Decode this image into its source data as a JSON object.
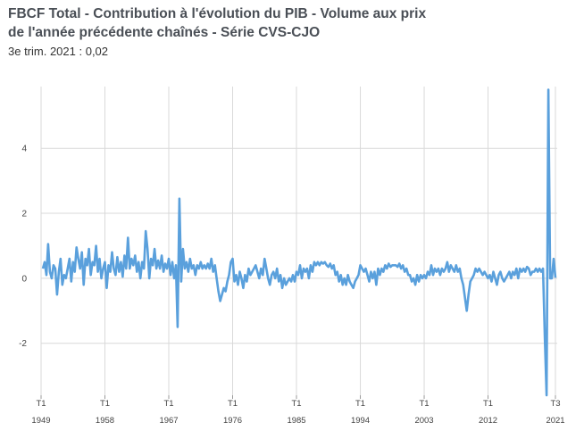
{
  "chart_data": {
    "type": "line",
    "title_line1": "FBCF Total - Contribution à l'évolution du PIB - Volume aux prix",
    "title_line2": "de l'année précédente chaînés - Série CVS-CJO",
    "subtitle": "3e trim. 2021 : 0,02",
    "ylim": [
      -3.6,
      5.9
    ],
    "yticks": [
      -2,
      0,
      2,
      4
    ],
    "xlim": [
      1949.0,
      2021.75
    ],
    "xticks": [
      {
        "quarter": "T1",
        "year": "1949",
        "x": 1949.0
      },
      {
        "quarter": "T1",
        "year": "1958",
        "x": 1958.0
      },
      {
        "quarter": "T1",
        "year": "1967",
        "x": 1967.0
      },
      {
        "quarter": "T1",
        "year": "1976",
        "x": 1976.0
      },
      {
        "quarter": "T1",
        "year": "1985",
        "x": 1985.0
      },
      {
        "quarter": "T1",
        "year": "1994",
        "x": 1994.0
      },
      {
        "quarter": "T1",
        "year": "2003",
        "x": 2003.0
      },
      {
        "quarter": "T1",
        "year": "2012",
        "x": 2012.0
      },
      {
        "quarter": "T3",
        "year": "2021",
        "x": 2021.5
      }
    ],
    "series": [
      {
        "name": "FBCF Total",
        "color": "#5aa0dc",
        "points": [
          [
            1949.25,
            0.3
          ],
          [
            1949.5,
            0.5
          ],
          [
            1949.75,
            0.1
          ],
          [
            1950.0,
            1.05
          ],
          [
            1950.25,
            0.2
          ],
          [
            1950.5,
            0.0
          ],
          [
            1950.75,
            0.4
          ],
          [
            1951.0,
            0.3
          ],
          [
            1951.25,
            -0.5
          ],
          [
            1951.5,
            0.2
          ],
          [
            1951.75,
            0.6
          ],
          [
            1952.0,
            -0.2
          ],
          [
            1952.25,
            0.1
          ],
          [
            1952.5,
            0.0
          ],
          [
            1952.75,
            0.3
          ],
          [
            1953.0,
            0.6
          ],
          [
            1953.25,
            -0.1
          ],
          [
            1953.5,
            0.5
          ],
          [
            1953.75,
            0.2
          ],
          [
            1954.0,
            0.95
          ],
          [
            1954.25,
            0.6
          ],
          [
            1954.5,
            0.3
          ],
          [
            1954.75,
            0.8
          ],
          [
            1955.0,
            -0.2
          ],
          [
            1955.25,
            0.6
          ],
          [
            1955.5,
            0.4
          ],
          [
            1955.75,
            0.9
          ],
          [
            1956.0,
            0.1
          ],
          [
            1956.25,
            0.5
          ],
          [
            1956.5,
            0.4
          ],
          [
            1956.75,
            1.0
          ],
          [
            1957.0,
            0.2
          ],
          [
            1957.25,
            0.6
          ],
          [
            1957.5,
            0.0
          ],
          [
            1957.75,
            0.3
          ],
          [
            1958.0,
            0.5
          ],
          [
            1958.25,
            -0.3
          ],
          [
            1958.5,
            0.4
          ],
          [
            1958.75,
            0.2
          ],
          [
            1959.0,
            0.8
          ],
          [
            1959.25,
            0.3
          ],
          [
            1959.5,
            0.1
          ],
          [
            1959.75,
            0.65
          ],
          [
            1960.0,
            0.2
          ],
          [
            1960.25,
            0.5
          ],
          [
            1960.5,
            0.05
          ],
          [
            1960.75,
            0.7
          ],
          [
            1961.0,
            0.3
          ],
          [
            1961.25,
            1.25
          ],
          [
            1961.5,
            0.3
          ],
          [
            1961.75,
            0.6
          ],
          [
            1962.0,
            0.4
          ],
          [
            1962.25,
            0.7
          ],
          [
            1962.5,
            0.2
          ],
          [
            1962.75,
            0.5
          ],
          [
            1963.0,
            0.0
          ],
          [
            1963.25,
            0.5
          ],
          [
            1963.5,
            0.3
          ],
          [
            1963.75,
            1.45
          ],
          [
            1964.0,
            0.9
          ],
          [
            1964.25,
            0.0
          ],
          [
            1964.5,
            0.6
          ],
          [
            1964.75,
            0.4
          ],
          [
            1965.0,
            0.9
          ],
          [
            1965.25,
            0.3
          ],
          [
            1965.5,
            0.55
          ],
          [
            1965.75,
            0.3
          ],
          [
            1966.0,
            0.7
          ],
          [
            1966.25,
            0.2
          ],
          [
            1966.5,
            0.45
          ],
          [
            1966.75,
            0.3
          ],
          [
            1967.0,
            0.6
          ],
          [
            1967.25,
            0.1
          ],
          [
            1967.5,
            0.5
          ],
          [
            1967.75,
            0.0
          ],
          [
            1968.0,
            0.4
          ],
          [
            1968.25,
            -1.5
          ],
          [
            1968.5,
            2.45
          ],
          [
            1968.75,
            -0.1
          ],
          [
            1969.0,
            0.9
          ],
          [
            1969.25,
            0.3
          ],
          [
            1969.5,
            0.5
          ],
          [
            1969.75,
            0.2
          ],
          [
            1970.0,
            0.6
          ],
          [
            1970.25,
            0.3
          ],
          [
            1970.5,
            0.4
          ],
          [
            1970.75,
            0.1
          ],
          [
            1971.0,
            0.4
          ],
          [
            1971.25,
            0.3
          ],
          [
            1971.5,
            0.5
          ],
          [
            1971.75,
            0.3
          ],
          [
            1972.0,
            0.4
          ],
          [
            1972.25,
            0.3
          ],
          [
            1972.5,
            0.45
          ],
          [
            1972.75,
            0.3
          ],
          [
            1973.0,
            0.6
          ],
          [
            1973.25,
            0.2
          ],
          [
            1973.5,
            0.4
          ],
          [
            1973.75,
            0.0
          ],
          [
            1974.0,
            -0.4
          ],
          [
            1974.25,
            -0.7
          ],
          [
            1974.5,
            -0.5
          ],
          [
            1974.75,
            -0.3
          ],
          [
            1975.0,
            -0.4
          ],
          [
            1975.25,
            -0.1
          ],
          [
            1975.5,
            0.1
          ],
          [
            1975.75,
            0.5
          ],
          [
            1976.0,
            0.6
          ],
          [
            1976.25,
            -0.1
          ],
          [
            1976.5,
            0.1
          ],
          [
            1976.75,
            -0.2
          ],
          [
            1977.0,
            0.2
          ],
          [
            1977.25,
            0.0
          ],
          [
            1977.5,
            -0.3
          ],
          [
            1977.75,
            0.1
          ],
          [
            1978.0,
            -0.1
          ],
          [
            1978.25,
            0.3
          ],
          [
            1978.5,
            0.1
          ],
          [
            1978.75,
            0.2
          ],
          [
            1979.0,
            0.3
          ],
          [
            1979.25,
            0.4
          ],
          [
            1979.5,
            0.2
          ],
          [
            1979.75,
            0.0
          ],
          [
            1980.0,
            0.3
          ],
          [
            1980.25,
            0.1
          ],
          [
            1980.5,
            0.6
          ],
          [
            1980.75,
            0.3
          ],
          [
            1981.0,
            0.0
          ],
          [
            1981.25,
            -0.2
          ],
          [
            1981.5,
            0.1
          ],
          [
            1981.75,
            0.2
          ],
          [
            1982.0,
            0.0
          ],
          [
            1982.25,
            0.3
          ],
          [
            1982.5,
            -0.1
          ],
          [
            1982.75,
            0.1
          ],
          [
            1983.0,
            -0.3
          ],
          [
            1983.25,
            0.0
          ],
          [
            1983.5,
            -0.2
          ],
          [
            1983.75,
            -0.1
          ],
          [
            1984.0,
            0.0
          ],
          [
            1984.25,
            -0.1
          ],
          [
            1984.5,
            0.1
          ],
          [
            1984.75,
            -0.1
          ],
          [
            1985.0,
            0.2
          ],
          [
            1985.25,
            0.1
          ],
          [
            1985.5,
            0.4
          ],
          [
            1985.75,
            0.0
          ],
          [
            1986.0,
            0.3
          ],
          [
            1986.25,
            0.2
          ],
          [
            1986.5,
            0.3
          ],
          [
            1986.75,
            0.0
          ],
          [
            1987.0,
            0.4
          ],
          [
            1987.25,
            0.2
          ],
          [
            1987.5,
            0.5
          ],
          [
            1987.75,
            0.4
          ],
          [
            1988.0,
            0.5
          ],
          [
            1988.25,
            0.4
          ],
          [
            1988.5,
            0.5
          ],
          [
            1988.75,
            0.45
          ],
          [
            1989.0,
            0.5
          ],
          [
            1989.25,
            0.4
          ],
          [
            1989.5,
            0.35
          ],
          [
            1989.75,
            0.45
          ],
          [
            1990.0,
            0.3
          ],
          [
            1990.25,
            0.4
          ],
          [
            1990.5,
            0.1
          ],
          [
            1990.75,
            0.2
          ],
          [
            1991.0,
            -0.1
          ],
          [
            1991.25,
            0.1
          ],
          [
            1991.5,
            -0.2
          ],
          [
            1991.75,
            0.0
          ],
          [
            1992.0,
            -0.2
          ],
          [
            1992.25,
            0.1
          ],
          [
            1992.5,
            -0.1
          ],
          [
            1992.75,
            -0.2
          ],
          [
            1993.0,
            -0.3
          ],
          [
            1993.25,
            -0.1
          ],
          [
            1993.5,
            0.0
          ],
          [
            1993.75,
            0.1
          ],
          [
            1994.0,
            0.4
          ],
          [
            1994.25,
            0.3
          ],
          [
            1994.5,
            0.2
          ],
          [
            1994.75,
            0.3
          ],
          [
            1995.0,
            0.1
          ],
          [
            1995.25,
            -0.1
          ],
          [
            1995.5,
            0.2
          ],
          [
            1995.75,
            0.0
          ],
          [
            1996.0,
            0.2
          ],
          [
            1996.25,
            -0.2
          ],
          [
            1996.5,
            0.3
          ],
          [
            1996.75,
            0.1
          ],
          [
            1997.0,
            0.3
          ],
          [
            1997.25,
            0.2
          ],
          [
            1997.5,
            0.4
          ],
          [
            1997.75,
            0.3
          ],
          [
            1998.0,
            0.45
          ],
          [
            1998.25,
            0.35
          ],
          [
            1998.5,
            0.4
          ],
          [
            1998.75,
            0.4
          ],
          [
            1999.0,
            0.4
          ],
          [
            1999.25,
            0.35
          ],
          [
            1999.5,
            0.45
          ],
          [
            1999.75,
            0.3
          ],
          [
            2000.0,
            0.4
          ],
          [
            2000.25,
            0.2
          ],
          [
            2000.5,
            0.3
          ],
          [
            2000.75,
            0.1
          ],
          [
            2001.0,
            0.1
          ],
          [
            2001.25,
            -0.1
          ],
          [
            2001.5,
            0.0
          ],
          [
            2001.75,
            -0.2
          ],
          [
            2002.0,
            0.1
          ],
          [
            2002.25,
            -0.1
          ],
          [
            2002.5,
            0.1
          ],
          [
            2002.75,
            0.0
          ],
          [
            2003.0,
            0.1
          ],
          [
            2003.25,
            0.0
          ],
          [
            2003.5,
            0.2
          ],
          [
            2003.75,
            0.1
          ],
          [
            2004.0,
            0.4
          ],
          [
            2004.25,
            0.1
          ],
          [
            2004.5,
            0.3
          ],
          [
            2004.75,
            0.2
          ],
          [
            2005.0,
            0.3
          ],
          [
            2005.25,
            0.1
          ],
          [
            2005.5,
            0.3
          ],
          [
            2005.75,
            0.2
          ],
          [
            2006.0,
            0.3
          ],
          [
            2006.25,
            0.5
          ],
          [
            2006.5,
            0.2
          ],
          [
            2006.75,
            0.4
          ],
          [
            2007.0,
            0.3
          ],
          [
            2007.25,
            0.2
          ],
          [
            2007.5,
            0.4
          ],
          [
            2007.75,
            0.2
          ],
          [
            2008.0,
            0.3
          ],
          [
            2008.25,
            0.0
          ],
          [
            2008.5,
            -0.2
          ],
          [
            2008.75,
            -0.6
          ],
          [
            2009.0,
            -1.0
          ],
          [
            2009.25,
            -0.5
          ],
          [
            2009.5,
            -0.1
          ],
          [
            2009.75,
            0.0
          ],
          [
            2010.0,
            0.1
          ],
          [
            2010.25,
            0.3
          ],
          [
            2010.5,
            0.2
          ],
          [
            2010.75,
            0.3
          ],
          [
            2011.0,
            0.2
          ],
          [
            2011.25,
            0.1
          ],
          [
            2011.5,
            0.2
          ],
          [
            2011.75,
            0.1
          ],
          [
            2012.0,
            0.0
          ],
          [
            2012.25,
            0.1
          ],
          [
            2012.5,
            -0.1
          ],
          [
            2012.75,
            0.2
          ],
          [
            2013.0,
            0.0
          ],
          [
            2013.25,
            -0.2
          ],
          [
            2013.5,
            0.1
          ],
          [
            2013.75,
            0.2
          ],
          [
            2014.0,
            0.0
          ],
          [
            2014.25,
            -0.1
          ],
          [
            2014.5,
            0.0
          ],
          [
            2014.75,
            0.1
          ],
          [
            2015.0,
            0.2
          ],
          [
            2015.25,
            0.0
          ],
          [
            2015.5,
            0.2
          ],
          [
            2015.75,
            0.1
          ],
          [
            2016.0,
            0.3
          ],
          [
            2016.25,
            0.0
          ],
          [
            2016.5,
            0.3
          ],
          [
            2016.75,
            0.2
          ],
          [
            2017.0,
            0.3
          ],
          [
            2017.25,
            0.2
          ],
          [
            2017.5,
            0.35
          ],
          [
            2017.75,
            0.3
          ],
          [
            2018.0,
            0.1
          ],
          [
            2018.25,
            0.2
          ],
          [
            2018.5,
            0.2
          ],
          [
            2018.75,
            0.3
          ],
          [
            2019.0,
            0.2
          ],
          [
            2019.25,
            0.3
          ],
          [
            2019.5,
            0.2
          ],
          [
            2019.75,
            0.3
          ],
          [
            2020.0,
            -1.8
          ],
          [
            2020.25,
            -3.6
          ],
          [
            2020.5,
            5.8
          ],
          [
            2020.75,
            0.0
          ],
          [
            2021.0,
            0.0
          ],
          [
            2021.25,
            0.6
          ],
          [
            2021.5,
            0.02
          ]
        ]
      }
    ]
  }
}
